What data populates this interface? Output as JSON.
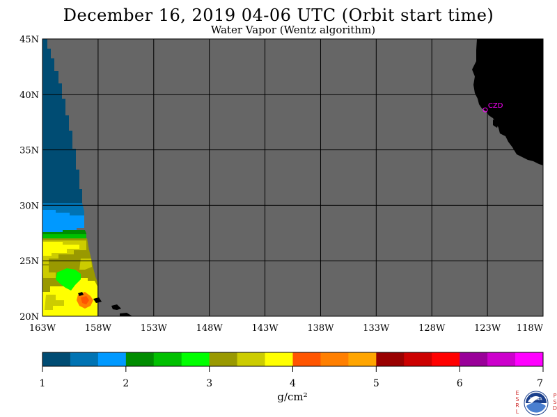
{
  "title": "December 16, 2019  04-06 UTC  (Orbit start time)",
  "subtitle": "Water Vapor (Wentz algorithm)",
  "map": {
    "lon_range": [
      -163,
      -118
    ],
    "lat_range": [
      20,
      45
    ],
    "lon_ticks": [
      {
        "value": -163,
        "label": "163W"
      },
      {
        "value": -158,
        "label": "158W"
      },
      {
        "value": -153,
        "label": "153W"
      },
      {
        "value": -148,
        "label": "148W"
      },
      {
        "value": -143,
        "label": "143W"
      },
      {
        "value": -138,
        "label": "138W"
      },
      {
        "value": -133,
        "label": "133W"
      },
      {
        "value": -128,
        "label": "128W"
      },
      {
        "value": -123,
        "label": "123W"
      },
      {
        "value": -118,
        "label": "118W"
      }
    ],
    "lat_ticks": [
      {
        "value": 20,
        "label": "20N"
      },
      {
        "value": 25,
        "label": "25N"
      },
      {
        "value": 30,
        "label": "30N"
      },
      {
        "value": 35,
        "label": "35N"
      },
      {
        "value": 40,
        "label": "40N"
      },
      {
        "value": 45,
        "label": "45N"
      }
    ],
    "no_data_color": "#666666",
    "land_color": "#000000",
    "grid_color": "#000000",
    "station": {
      "label": "CZD",
      "lon": -123.2,
      "lat": 38.6,
      "color": "#ff00ff"
    }
  },
  "colorbar": {
    "colors": [
      "#004c73",
      "#0073b3",
      "#0099ff",
      "#008c00",
      "#00c000",
      "#00ff00",
      "#999900",
      "#cccc00",
      "#ffff00",
      "#ff5500",
      "#ff7f00",
      "#ffa500",
      "#990000",
      "#cc0000",
      "#ff0000",
      "#990099",
      "#cc00cc",
      "#ff00ff"
    ],
    "tick_labels": [
      "1",
      "2",
      "3",
      "4",
      "5",
      "6",
      "7"
    ],
    "units": "g/cm²"
  },
  "logo": {
    "side_left": [
      "E",
      "S",
      "R",
      "L"
    ],
    "side_right": [
      "P",
      "S",
      "D"
    ],
    "center": "NOAA"
  }
}
